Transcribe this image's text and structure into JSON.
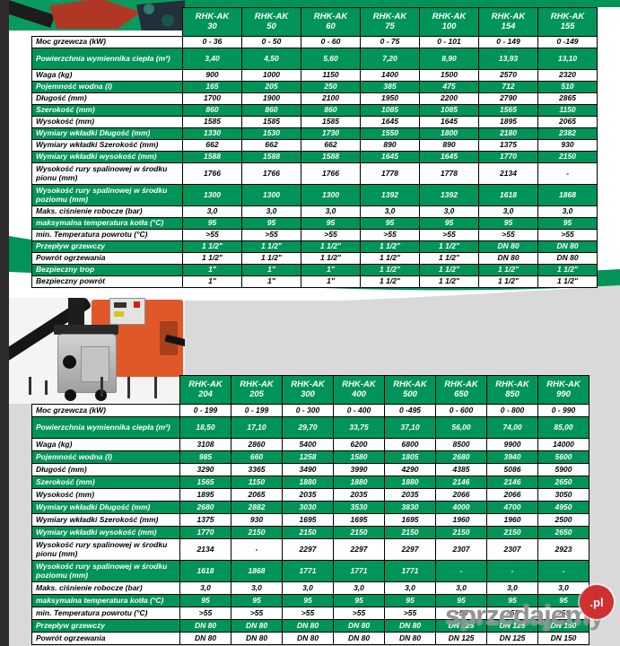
{
  "colors": {
    "accent_green": "#009458",
    "background_grey": "#d9d9d9",
    "boiler_orange": "#e0582a",
    "watermark_red": "#d03030"
  },
  "watermark": {
    "text": "sprzedajemy",
    "suffix": ".pl"
  },
  "tables": [
    {
      "name": "RHK-AK small models specification",
      "columns": [
        "RHK-AK\n30",
        "RHK-AK\n50",
        "RHK-AK\n60",
        "RHK-AK\n75",
        "RHK-AK\n100",
        "RHK-AK\n154",
        "RHK-AK\n155"
      ],
      "rows": [
        {
          "label": "Moc grzewcza (kW)",
          "values": [
            "0 - 36",
            "0 - 50",
            "0 - 60",
            "0 - 75",
            "0 - 101",
            "0 - 149",
            "0 -149"
          ]
        },
        {
          "label": "Powierzchnia wymiennika ciepła (m²)",
          "tall": true,
          "values": [
            "3,40",
            "4,50",
            "5,60",
            "7,20",
            "8,90",
            "13,93",
            "13,10"
          ]
        },
        {
          "label": "Waga (kg)",
          "values": [
            "900",
            "1000",
            "1150",
            "1400",
            "1500",
            "2570",
            "2320"
          ]
        },
        {
          "label": "Pojemność wodna (l)",
          "values": [
            "165",
            "205",
            "250",
            "385",
            "475",
            "712",
            "510"
          ]
        },
        {
          "label": "Długość (mm)",
          "values": [
            "1700",
            "1900",
            "2100",
            "1950",
            "2200",
            "2790",
            "2865"
          ]
        },
        {
          "label": "Szerokość (mm)",
          "values": [
            "860",
            "860",
            "860",
            "1085",
            "1085",
            "1565",
            "1150"
          ]
        },
        {
          "label": "Wysokość (mm)",
          "values": [
            "1585",
            "1585",
            "1585",
            "1645",
            "1645",
            "1895",
            "2065"
          ]
        },
        {
          "label": "Wymiary wkładki Długość (mm)",
          "values": [
            "1330",
            "1530",
            "1730",
            "1550",
            "1800",
            "2180",
            "2382"
          ]
        },
        {
          "label": "Wymiary wkładki Szerokość (mm)",
          "values": [
            "662",
            "662",
            "662",
            "890",
            "890",
            "1375",
            "930"
          ]
        },
        {
          "label": "Wymiary wkładki wysokość (mm)",
          "values": [
            "1588",
            "1588",
            "1588",
            "1645",
            "1645",
            "1770",
            "2150"
          ]
        },
        {
          "label": "Wysokość rury spalinowej w środku pionu (mm)",
          "tall": true,
          "values": [
            "1766",
            "1766",
            "1766",
            "1778",
            "1778",
            "2134",
            "-"
          ]
        },
        {
          "label": "Wysokość rury spalinowej w środku poziomu (mm)",
          "tall": true,
          "values": [
            "1300",
            "1300",
            "1300",
            "1392",
            "1392",
            "1618",
            "1868"
          ]
        },
        {
          "label": "Maks. ciśnienie robocze (bar)",
          "values": [
            "3,0",
            "3,0",
            "3,0",
            "3,0",
            "3,0",
            "3,0",
            "3,0"
          ]
        },
        {
          "label": "maksymalna temperatura kotła (°C)",
          "values": [
            "95",
            "95",
            "95",
            "95",
            "95",
            "95",
            "95"
          ]
        },
        {
          "label": "min. Temperatura powrotu (°C)",
          "values": [
            ">55",
            ">55",
            ">55",
            ">55",
            ">55",
            ">55",
            ">55"
          ]
        },
        {
          "label": "Przepływ grzewczy",
          "values": [
            "1 1/2\"",
            "1 1/2\"",
            "1 1/2\"",
            "1 1/2\"",
            "1 1/2\"",
            "DN 80",
            "DN 80"
          ]
        },
        {
          "label": "Powrót ogrzewania",
          "values": [
            "1 1/2\"",
            "1 1/2\"",
            "1 1/2\"",
            "1 1/2\"",
            "1 1/2\"",
            "DN 80",
            "DN 80"
          ]
        },
        {
          "label": "Bezpieczny trop",
          "values": [
            "1\"",
            "1\"",
            "1\"",
            "1 1/2\"",
            "1 1/2\"",
            "1 1/2\"",
            "1 1/2\""
          ]
        },
        {
          "label": "Bezpieczny powrót",
          "values": [
            "1\"",
            "1\"",
            "1\"",
            "1 1/2\"",
            "1 1/2\"",
            "1 1/2\"",
            "1 1/2\""
          ]
        }
      ]
    },
    {
      "name": "RHK-AK large models specification",
      "columns": [
        "RHK-AK\n204",
        "RHK-AK\n205",
        "RHK-AK\n300",
        "RHK-AK\n400",
        "RHK-AK\n500",
        "RHK-AK\n650",
        "RHK-AK\n850",
        "RHK-AK\n990"
      ],
      "rows": [
        {
          "label": "Moc grzewcza (kW)",
          "values": [
            "0 - 199",
            "0 - 199",
            "0 - 300",
            "0 - 400",
            "0 -495",
            "0 - 600",
            "0 - 800",
            "0 - 990"
          ]
        },
        {
          "label": "Powierzchnia wymiennika ciepła (m²)",
          "tall": true,
          "values": [
            "18,50",
            "17,10",
            "29,70",
            "33,75",
            "37,10",
            "56,00",
            "74,00",
            "85,00"
          ]
        },
        {
          "label": "Waga (kg)",
          "values": [
            "3108",
            "2860",
            "5400",
            "6200",
            "6800",
            "8500",
            "9900",
            "14000"
          ]
        },
        {
          "label": "Pojemność wodna (l)",
          "values": [
            "985",
            "660",
            "1258",
            "1580",
            "1805",
            "2680",
            "3940",
            "5600"
          ]
        },
        {
          "label": "Długość (mm)",
          "values": [
            "3290",
            "3365",
            "3490",
            "3990",
            "4290",
            "4385",
            "5086",
            "5900"
          ]
        },
        {
          "label": "Szerokość (mm)",
          "values": [
            "1565",
            "1150",
            "1880",
            "1880",
            "1880",
            "2146",
            "2146",
            "2650"
          ]
        },
        {
          "label": "Wysokość (mm)",
          "values": [
            "1895",
            "2065",
            "2035",
            "2035",
            "2035",
            "2066",
            "2066",
            "3050"
          ]
        },
        {
          "label": "Wymiary wkładki Długość (mm)",
          "values": [
            "2680",
            "2882",
            "3030",
            "3530",
            "3830",
            "4000",
            "4700",
            "4950"
          ]
        },
        {
          "label": "Wymiary wkładki Szerokość (mm)",
          "values": [
            "1375",
            "930",
            "1695",
            "1695",
            "1695",
            "1960",
            "1960",
            "2500"
          ]
        },
        {
          "label": "Wymiary wkładki wysokość (mm)",
          "values": [
            "1770",
            "2150",
            "2150",
            "2150",
            "2150",
            "2150",
            "2150",
            "2650"
          ]
        },
        {
          "label": "Wysokość rury spalinowej w środku pionu (mm)",
          "tall": true,
          "values": [
            "2134",
            "-",
            "2297",
            "2297",
            "2297",
            "2307",
            "2307",
            "2923"
          ]
        },
        {
          "label": "Wysokość rury spalinowej w środku poziomu (mm)",
          "tall": true,
          "values": [
            "1618",
            "1868",
            "1771",
            "1771",
            "1771",
            "-",
            "-",
            "-"
          ]
        },
        {
          "label": "Maks. ciśnienie robocze (bar)",
          "values": [
            "3,0",
            "3,0",
            "3,0",
            "3,0",
            "3,0",
            "3,0",
            "3,0",
            "3,0"
          ]
        },
        {
          "label": "maksymalna temperatura kotła (°C)",
          "values": [
            "95",
            "95",
            "95",
            "95",
            "95",
            "95",
            "95",
            "95"
          ]
        },
        {
          "label": "min. Temperatura powrotu (°C)",
          "values": [
            ">55",
            ">55",
            ">55",
            ">55",
            ">55",
            ">55",
            ">55",
            ">55"
          ]
        },
        {
          "label": "Przepływ grzewczy",
          "values": [
            "DN 80",
            "DN 80",
            "DN 80",
            "DN 80",
            "DN 80",
            "DN 125",
            "DN 125",
            "DN 150"
          ]
        },
        {
          "label": "Powrót ogrzewania",
          "values": [
            "DN 80",
            "DN 80",
            "DN 80",
            "DN 80",
            "DN 80",
            "DN 125",
            "DN 125",
            "DN 150"
          ]
        }
      ]
    }
  ]
}
